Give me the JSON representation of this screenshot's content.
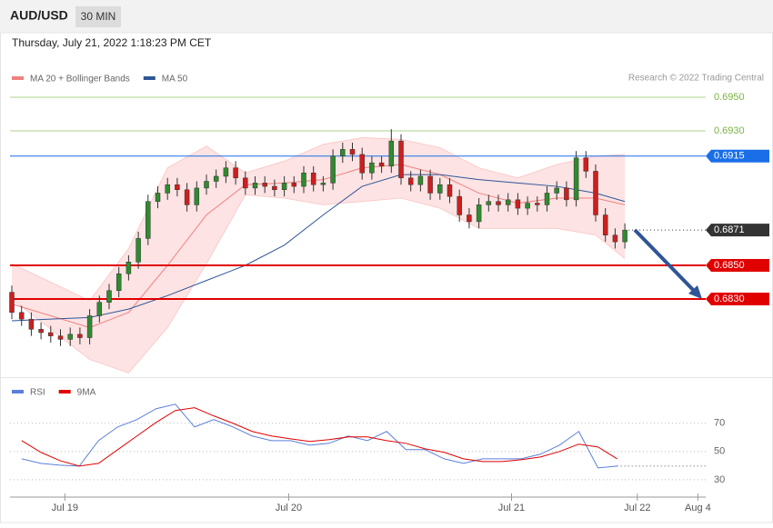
{
  "header": {
    "symbol": "AUD/USD",
    "interval": "30 MIN",
    "timestamp": "Thursday, July 21, 2022 1:18:23 PM CET",
    "credit": "Research © 2022 Trading Central"
  },
  "chart_data": [
    {
      "type": "candlestick",
      "legend": [
        {
          "name": "MA 20 + Bollinger Bands",
          "color": "#f08080"
        },
        {
          "name": "MA 50",
          "color": "#2f5597"
        }
      ],
      "ylim": [
        0.67835,
        0.69884
      ],
      "open": [
        0.6834,
        0.6822,
        0.6818,
        0.6812,
        0.681,
        0.6808,
        0.6806,
        0.6809,
        0.6807,
        0.682,
        0.6828,
        0.6835,
        0.6845,
        0.6852,
        0.6866,
        0.6888,
        0.6893,
        0.6898,
        0.6895,
        0.6886,
        0.6896,
        0.69,
        0.6903,
        0.6908,
        0.6902,
        0.6896,
        0.6899,
        0.6897,
        0.6895,
        0.6899,
        0.6897,
        0.6905,
        0.6898,
        0.6899,
        0.6915,
        0.6919,
        0.6916,
        0.6905,
        0.6911,
        0.6909,
        0.6924,
        0.6902,
        0.6898,
        0.6903,
        0.6893,
        0.6898,
        0.6891,
        0.688,
        0.6876,
        0.6886,
        0.6888,
        0.6886,
        0.6889,
        0.6884,
        0.6887,
        0.6886,
        0.6893,
        0.6896,
        0.6889,
        0.6914,
        0.6906,
        0.688,
        0.6868,
        0.6864
      ],
      "high": [
        0.6838,
        0.6826,
        0.6822,
        0.6816,
        0.6814,
        0.6812,
        0.6813,
        0.6813,
        0.6824,
        0.6832,
        0.6839,
        0.6849,
        0.6856,
        0.687,
        0.6892,
        0.6897,
        0.6902,
        0.6902,
        0.6899,
        0.69,
        0.6904,
        0.6907,
        0.6912,
        0.6912,
        0.6906,
        0.6903,
        0.6903,
        0.6901,
        0.6903,
        0.6903,
        0.6909,
        0.6909,
        0.6903,
        0.6919,
        0.6923,
        0.6923,
        0.692,
        0.6915,
        0.6915,
        0.6931,
        0.6928,
        0.6906,
        0.6907,
        0.6907,
        0.6902,
        0.6902,
        0.6895,
        0.6884,
        0.689,
        0.6892,
        0.6892,
        0.6893,
        0.6893,
        0.6891,
        0.6891,
        0.6897,
        0.69,
        0.69,
        0.6918,
        0.6918,
        0.691,
        0.6884,
        0.6872,
        0.6875
      ],
      "low": [
        0.6818,
        0.6814,
        0.6808,
        0.6806,
        0.6804,
        0.6802,
        0.6802,
        0.6803,
        0.6803,
        0.6816,
        0.6824,
        0.6831,
        0.6841,
        0.6848,
        0.6862,
        0.6884,
        0.6889,
        0.6891,
        0.6882,
        0.6882,
        0.6892,
        0.6896,
        0.6899,
        0.6898,
        0.6892,
        0.6892,
        0.6893,
        0.6891,
        0.6891,
        0.6893,
        0.6893,
        0.6894,
        0.6894,
        0.6895,
        0.6911,
        0.6912,
        0.6901,
        0.6901,
        0.6905,
        0.6905,
        0.6898,
        0.6894,
        0.6894,
        0.6889,
        0.6889,
        0.6887,
        0.6876,
        0.6872,
        0.6872,
        0.6882,
        0.6882,
        0.6882,
        0.688,
        0.688,
        0.6882,
        0.6882,
        0.6889,
        0.6885,
        0.6885,
        0.6902,
        0.6876,
        0.6864,
        0.686,
        0.686
      ],
      "close": [
        0.6822,
        0.6818,
        0.6812,
        0.681,
        0.6808,
        0.6806,
        0.6809,
        0.6807,
        0.682,
        0.6828,
        0.6835,
        0.6845,
        0.6852,
        0.6866,
        0.6888,
        0.6893,
        0.6898,
        0.6895,
        0.6886,
        0.6896,
        0.69,
        0.6903,
        0.6908,
        0.6902,
        0.6896,
        0.6899,
        0.6897,
        0.6895,
        0.6899,
        0.6897,
        0.6905,
        0.6898,
        0.6899,
        0.6915,
        0.6919,
        0.6916,
        0.6905,
        0.6911,
        0.6909,
        0.6924,
        0.6902,
        0.6898,
        0.6903,
        0.6893,
        0.6898,
        0.6891,
        0.688,
        0.6876,
        0.6886,
        0.6888,
        0.6886,
        0.6889,
        0.6884,
        0.6887,
        0.6886,
        0.6893,
        0.6896,
        0.6889,
        0.6914,
        0.6906,
        0.688,
        0.6868,
        0.6864,
        0.6871
      ],
      "up_color": "#2e8b2e",
      "down_color": "#cc1f1f",
      "overlay_x": [
        0,
        4,
        8,
        12,
        16,
        20,
        24,
        28,
        32,
        36,
        40,
        44,
        48,
        52,
        56,
        60,
        63
      ],
      "ma50": [
        0.6817,
        0.6818,
        0.6819,
        0.6824,
        0.6832,
        0.6841,
        0.685,
        0.6862,
        0.688,
        0.6897,
        0.6904,
        0.6904,
        0.6901,
        0.6899,
        0.6897,
        0.6893,
        0.6888
      ],
      "ma20": [
        0.6827,
        0.682,
        0.6813,
        0.6822,
        0.685,
        0.688,
        0.6898,
        0.6899,
        0.6901,
        0.6908,
        0.691,
        0.6904,
        0.6893,
        0.6887,
        0.689,
        0.689,
        0.6886
      ],
      "upper_band": [
        0.6851,
        0.684,
        0.6829,
        0.686,
        0.6908,
        0.6921,
        0.6905,
        0.6912,
        0.6922,
        0.6926,
        0.6925,
        0.692,
        0.6908,
        0.6902,
        0.691,
        0.6915,
        0.6916
      ],
      "lower_band": [
        0.683,
        0.6812,
        0.6794,
        0.6786,
        0.6813,
        0.6851,
        0.6892,
        0.689,
        0.6886,
        0.6888,
        0.689,
        0.6884,
        0.6872,
        0.6872,
        0.6872,
        0.6868,
        0.6854
      ],
      "levels": [
        {
          "value": 0.695,
          "label": "0.6950",
          "color": "#7cb342",
          "boxed": false
        },
        {
          "value": 0.693,
          "label": "0.6930",
          "color": "#7cb342",
          "boxed": false
        },
        {
          "value": 0.6915,
          "label": "0.6915",
          "color": "#1a6fe8",
          "boxed": true
        },
        {
          "value": 0.6871,
          "label": "0.6871",
          "color": "#333333",
          "boxed": true
        },
        {
          "value": 0.685,
          "label": "0.6850",
          "color": "#e00000",
          "boxed": true
        },
        {
          "value": 0.683,
          "label": "0.6830",
          "color": "#e00000",
          "boxed": true
        }
      ]
    },
    {
      "type": "line",
      "series": [
        {
          "name": "RSI",
          "color": "#5b7fdb",
          "values": [
            44.8,
            41.6,
            40.3,
            39.7,
            57.7,
            67.4,
            72.6,
            80.3,
            83.5,
            67.4,
            72.6,
            67.4,
            61.0,
            57.7,
            57.7,
            54.5,
            55.8,
            61.0,
            57.7,
            64.2,
            51.3,
            51.3,
            44.8,
            41.6,
            44.8,
            44.8,
            44.8,
            48.1,
            54.5,
            64.2,
            38.4,
            39.7
          ]
        },
        {
          "name": "9MA",
          "color": "#e00000",
          "values": [
            57.7,
            49.4,
            43.5,
            39.7,
            41.6,
            51.3,
            61.0,
            70.6,
            79.0,
            81.0,
            75.2,
            70.0,
            64.2,
            61.0,
            59.0,
            57.1,
            58.4,
            60.3,
            60.3,
            57.7,
            55.8,
            51.9,
            49.4,
            44.8,
            42.9,
            42.9,
            44.2,
            46.1,
            50.0,
            55.2,
            53.2,
            44.8
          ]
        }
      ],
      "x": [
        0,
        2,
        4,
        6,
        8,
        10,
        12,
        14,
        16,
        18,
        20,
        22,
        24,
        26,
        28,
        30,
        32,
        34,
        36,
        38,
        40,
        42,
        44,
        46,
        48,
        50,
        52,
        54,
        56,
        58,
        60,
        62
      ],
      "xlim": [
        -1.215,
        71.215
      ],
      "xticks": [
        {
          "value": 4.5,
          "label": "Jul 19"
        },
        {
          "value": 27.8,
          "label": "Jul 20"
        },
        {
          "value": 51,
          "label": "Jul 21"
        },
        {
          "value": 64.1,
          "label": "Jul 22"
        },
        {
          "value": 70.4,
          "label": "Aug 4"
        }
      ],
      "ylim": [
        19,
        102
      ],
      "yticks": [
        30,
        50,
        70
      ]
    }
  ]
}
